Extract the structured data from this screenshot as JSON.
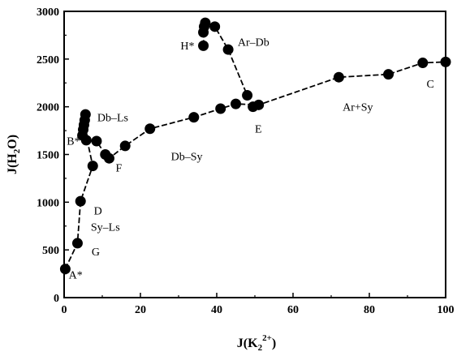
{
  "chart_data": {
    "type": "scatter",
    "xlabel_base": "J(K",
    "xlabel_sub": "2",
    "xlabel_sup": "2+",
    "xlabel_end": ")",
    "ylabel_base": "J(H",
    "ylabel_sub": "2",
    "ylabel_end": "O)",
    "xlim": [
      0,
      100
    ],
    "ylim": [
      0,
      3000
    ],
    "xticks": [
      0,
      20,
      40,
      60,
      80,
      100
    ],
    "yticks": [
      0,
      500,
      1000,
      1500,
      2000,
      2500,
      3000
    ],
    "points": [
      {
        "x": 0.3,
        "y": 300
      },
      {
        "x": 3.5,
        "y": 570
      },
      {
        "x": 4.3,
        "y": 1010
      },
      {
        "x": 7.5,
        "y": 1380
      },
      {
        "x": 4.8,
        "y": 1700
      },
      {
        "x": 5.0,
        "y": 1760
      },
      {
        "x": 5.2,
        "y": 1810
      },
      {
        "x": 5.4,
        "y": 1860
      },
      {
        "x": 5.6,
        "y": 1920
      },
      {
        "x": 5.8,
        "y": 1650
      },
      {
        "x": 8.5,
        "y": 1640
      },
      {
        "x": 10.8,
        "y": 1500
      },
      {
        "x": 11.8,
        "y": 1460
      },
      {
        "x": 16.0,
        "y": 1590
      },
      {
        "x": 22.5,
        "y": 1770
      },
      {
        "x": 34.0,
        "y": 1890
      },
      {
        "x": 41.0,
        "y": 1980
      },
      {
        "x": 45.0,
        "y": 2030
      },
      {
        "x": 48.0,
        "y": 2120
      },
      {
        "x": 49.5,
        "y": 2000
      },
      {
        "x": 51.0,
        "y": 2020
      },
      {
        "x": 72.0,
        "y": 2310
      },
      {
        "x": 85.0,
        "y": 2340
      },
      {
        "x": 94.0,
        "y": 2460
      },
      {
        "x": 100.0,
        "y": 2470
      },
      {
        "x": 36.5,
        "y": 2640
      },
      {
        "x": 36.5,
        "y": 2780
      },
      {
        "x": 36.7,
        "y": 2840
      },
      {
        "x": 37.0,
        "y": 2880
      },
      {
        "x": 39.5,
        "y": 2840
      },
      {
        "x": 43.0,
        "y": 2600
      }
    ],
    "segments": [
      [
        [
          0.3,
          300
        ],
        [
          3.5,
          570
        ],
        [
          4.3,
          1010
        ],
        [
          7.5,
          1380
        ],
        [
          5.2,
          1810
        ],
        [
          5.8,
          1650
        ],
        [
          8.5,
          1640
        ],
        [
          10.8,
          1500
        ],
        [
          11.8,
          1460
        ],
        [
          16.0,
          1590
        ],
        [
          22.5,
          1770
        ],
        [
          34.0,
          1890
        ],
        [
          41.0,
          1980
        ],
        [
          45.0,
          2030
        ],
        [
          51.0,
          2020
        ],
        [
          72.0,
          2310
        ],
        [
          85.0,
          2340
        ],
        [
          94.0,
          2460
        ],
        [
          100.0,
          2470
        ]
      ],
      [
        [
          36.5,
          2640
        ],
        [
          36.7,
          2840
        ],
        [
          39.5,
          2840
        ],
        [
          43.0,
          2600
        ],
        [
          48.0,
          2120
        ]
      ]
    ],
    "annotations": [
      {
        "text": "A*",
        "x": 1.2,
        "y": 200
      },
      {
        "text": "G",
        "x": 7.2,
        "y": 440
      },
      {
        "text": "D",
        "x": 7.8,
        "y": 870
      },
      {
        "text": "Sy–Ls",
        "x": 7.0,
        "y": 700
      },
      {
        "text": "F",
        "x": 13.5,
        "y": 1320
      },
      {
        "text": "B*",
        "x": 0.7,
        "y": 1600
      },
      {
        "text": "Db–Ls",
        "x": 8.7,
        "y": 1850
      },
      {
        "text": "Db–Sy",
        "x": 28.0,
        "y": 1440
      },
      {
        "text": "H*",
        "x": 30.5,
        "y": 2600
      },
      {
        "text": "Ar–Db",
        "x": 45.5,
        "y": 2640
      },
      {
        "text": "E",
        "x": 50.0,
        "y": 1730
      },
      {
        "text": "Ar+Sy",
        "x": 73.0,
        "y": 1960
      },
      {
        "text": "C",
        "x": 95.0,
        "y": 2200
      }
    ]
  }
}
